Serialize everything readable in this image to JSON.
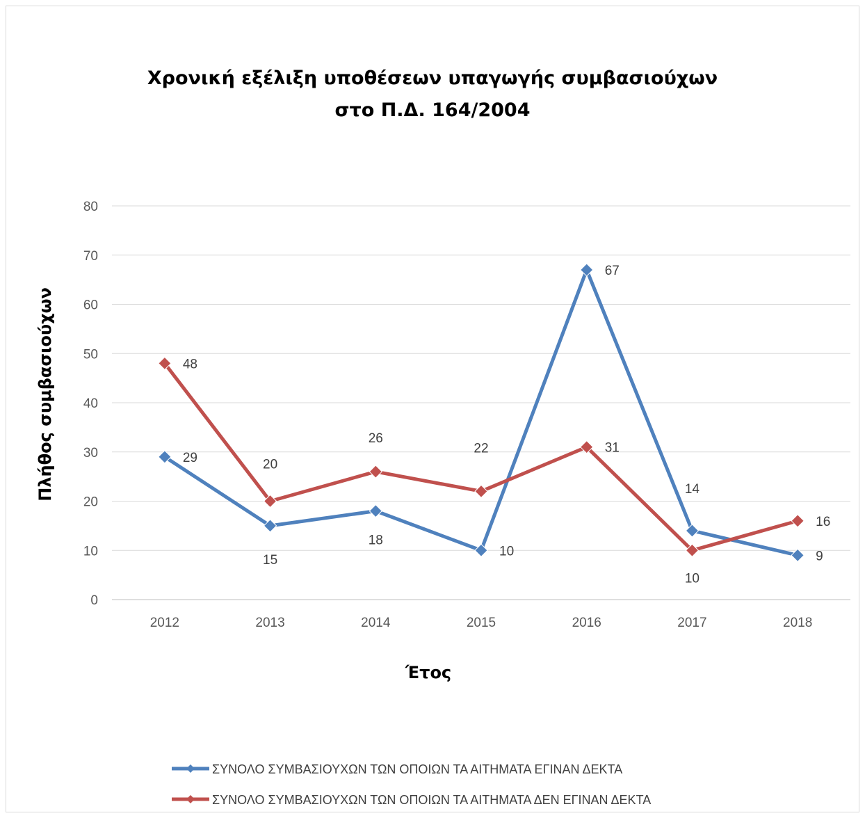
{
  "chart_data": {
    "type": "line",
    "title": [
      "Χρονική εξέλιξη υποθέσεων υπαγωγής συμβασιούχων",
      "στο Π.Δ. 164/2004"
    ],
    "xlabel": "Έτος",
    "ylabel": "Πλήθος συμβασιούχων",
    "ylim": [
      0,
      80
    ],
    "yticks": [
      0,
      10,
      20,
      30,
      40,
      50,
      60,
      70,
      80
    ],
    "categories": [
      "2012",
      "2013",
      "2014",
      "2015",
      "2016",
      "2017",
      "2018"
    ],
    "grid": true,
    "legend_position": "bottom",
    "series": [
      {
        "name": "ΣΥΝΟΛΟ ΣΥΜΒΑΣΙΟΥΧΩΝ ΤΩΝ ΟΠΟΙΩΝ ΤΑ ΑΙΤΗΜΑΤΑ ΕΓΙΝΑΝ ΔΕΚΤΑ",
        "color": "#4f81bd",
        "marker": "diamond",
        "values": [
          29,
          15,
          18,
          10,
          67,
          14,
          9
        ]
      },
      {
        "name": "ΣΥΝΟΛΟ ΣΥΜΒΑΣΙΟΥΧΩΝ ΤΩΝ ΟΠΟΙΩΝ ΤΑ ΑΙΤΗΜΑΤΑ ΔΕΝ ΕΓΙΝΑΝ ΔΕΚΤΑ",
        "color": "#c0504d",
        "marker": "diamond",
        "values": [
          48,
          20,
          26,
          22,
          31,
          10,
          16
        ]
      }
    ]
  }
}
